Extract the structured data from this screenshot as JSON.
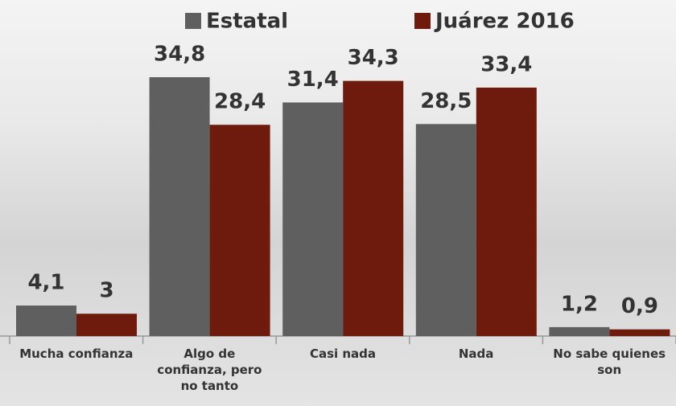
{
  "chart_data": {
    "type": "bar",
    "categories": [
      "Mucha confianza",
      "Algo de confianza, pero no tanto",
      "Casi nada",
      "Nada",
      "No sabe quienes son"
    ],
    "series": [
      {
        "name": "Estatal",
        "color": "#5f5f5f",
        "values": [
          4.1,
          34.8,
          31.4,
          28.5,
          1.2
        ],
        "value_labels": [
          "4,1",
          "34,8",
          "31,4",
          "28,5",
          "1,2"
        ]
      },
      {
        "name": "Juárez 2016",
        "color": "#6e1a0c",
        "values": [
          3,
          28.4,
          34.3,
          33.4,
          0.9
        ],
        "value_labels": [
          "3",
          "28,4",
          "34,3",
          "33,4",
          "0,9"
        ]
      }
    ]
  }
}
